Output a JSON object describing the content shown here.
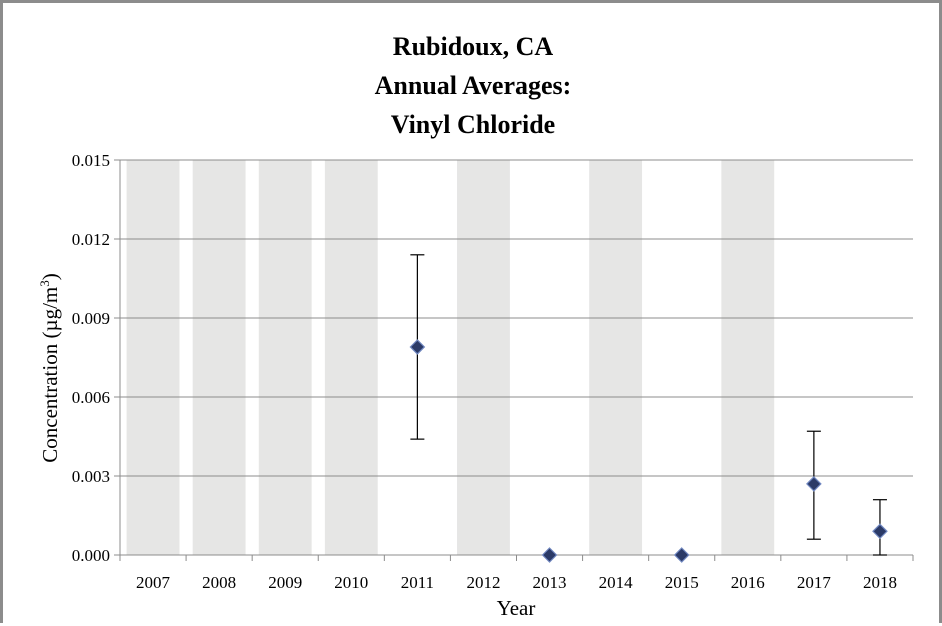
{
  "chart_data": {
    "type": "scatter",
    "title_lines": [
      "Rubidoux, CA",
      "Annual Averages:",
      "Vinyl Chloride"
    ],
    "xlabel": "Year",
    "ylabel_main": "Concentration  (µg/m",
    "ylabel_sup": "3",
    "ylabel_close": ")",
    "categories": [
      "2007",
      "2008",
      "2009",
      "2010",
      "2011",
      "2012",
      "2013",
      "2014",
      "2015",
      "2016",
      "2017",
      "2018"
    ],
    "ylim": [
      0,
      0.015
    ],
    "yticks": [
      0.0,
      0.003,
      0.006,
      0.009,
      0.012,
      0.015
    ],
    "ytick_labels": [
      "0.000",
      "0.003",
      "0.006",
      "0.009",
      "0.012",
      "0.015"
    ],
    "grid": true,
    "shaded_years": [
      "2007",
      "2008",
      "2009",
      "2010",
      "2012",
      "2014",
      "2016"
    ],
    "points": [
      {
        "x": "2011",
        "y": 0.0079,
        "err_low": 0.0044,
        "err_high": 0.0114
      },
      {
        "x": "2013",
        "y": 0.0,
        "err_low": null,
        "err_high": null
      },
      {
        "x": "2015",
        "y": 0.0,
        "err_low": null,
        "err_high": null
      },
      {
        "x": "2017",
        "y": 0.0027,
        "err_low": 0.0006,
        "err_high": 0.0047
      },
      {
        "x": "2018",
        "y": 0.0009,
        "err_low": 0.0,
        "err_high": 0.0021
      }
    ],
    "colors": {
      "shade": "#e6e6e5",
      "marker_fill": "#2b3a67",
      "marker_stroke": "#6f86bf",
      "grid": "#8c8c8c",
      "error_bar": "#000000"
    }
  }
}
